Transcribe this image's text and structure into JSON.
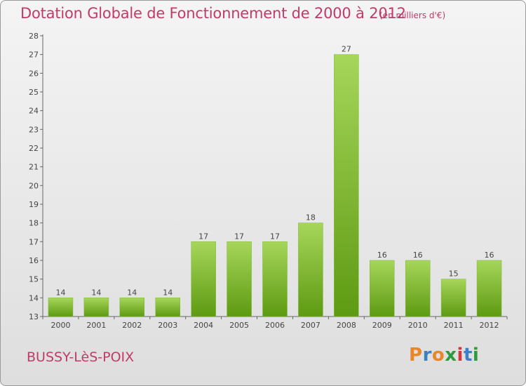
{
  "header": {
    "title": "Dotation Globale de Fonctionnement de 2000 à 2012",
    "units": "(en milliers d'€)"
  },
  "footer": {
    "commune": "BUSSY-LèS-POIX",
    "logo_text": "Proxiti",
    "logo_colors": [
      "#e8862a",
      "#3b7fc4",
      "#e8862a",
      "#2e9a3c",
      "#d8343c",
      "#3b7fc4",
      "#2e9a3c"
    ]
  },
  "colors": {
    "title": "#c03a6a",
    "bar_light": "#a6d65a",
    "bar_dark": "#5e9a12",
    "axis": "#666666"
  },
  "chart_data": {
    "type": "bar",
    "categories": [
      "2000",
      "2001",
      "2002",
      "2003",
      "2004",
      "2005",
      "2006",
      "2007",
      "2008",
      "2009",
      "2010",
      "2011",
      "2012"
    ],
    "values": [
      14,
      14,
      14,
      14,
      17,
      17,
      17,
      18,
      27,
      16,
      16,
      15,
      16
    ],
    "ylim": [
      13,
      28
    ],
    "yticks": [
      13,
      14,
      15,
      16,
      17,
      18,
      19,
      20,
      21,
      22,
      23,
      24,
      25,
      26,
      27,
      28
    ],
    "title": "Dotation Globale de Fonctionnement de 2000 à 2012",
    "ylabel": "(en milliers d'€)",
    "grid": false,
    "data_labels": true
  }
}
